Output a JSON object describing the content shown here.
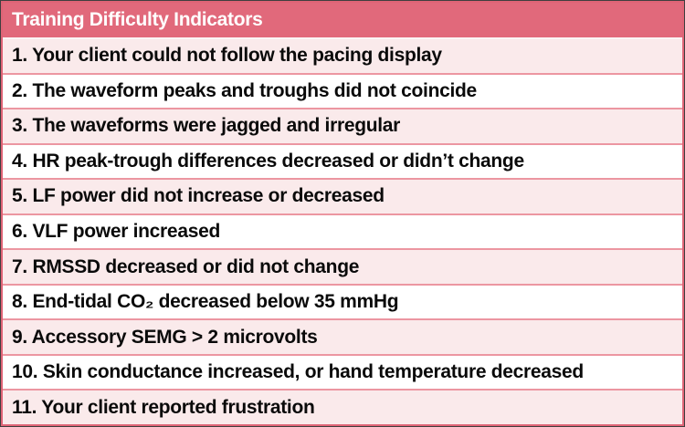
{
  "table": {
    "title": "Training Difficulty Indicators",
    "rows": [
      {
        "text": "1. Your client could not follow the pacing display",
        "shaded": true
      },
      {
        "text": "2. The waveform peaks and troughs did not coincide",
        "shaded": false
      },
      {
        "text": "3. The waveforms were jagged and irregular",
        "shaded": true
      },
      {
        "text": "4. HR peak-trough differences decreased or didn’t change",
        "shaded": false
      },
      {
        "text": "5. LF power did not increase or decreased",
        "shaded": true
      },
      {
        "text": "6. VLF power increased",
        "shaded": false
      },
      {
        "text": "7. RMSSD decreased or did not change",
        "shaded": true
      },
      {
        "text": "8. End-tidal CO₂ decreased below 35 mmHg",
        "shaded": false
      },
      {
        "text": "9. Accessory SEMG > 2 microvolts",
        "shaded": true
      },
      {
        "text": "10. Skin conductance increased, or hand temperature decreased",
        "shaded": false
      },
      {
        "text": "11. Your client reported frustration",
        "shaded": true
      }
    ]
  },
  "colors": {
    "header_bg": "#e1697b",
    "header_text": "#ffffff",
    "row_shaded_bg": "#faeaeb",
    "row_bg": "#ffffff",
    "separator": "#ec96a1",
    "outer_border": "#df6476",
    "outline": "#3f3f3f",
    "text": "#0a0a0a"
  }
}
